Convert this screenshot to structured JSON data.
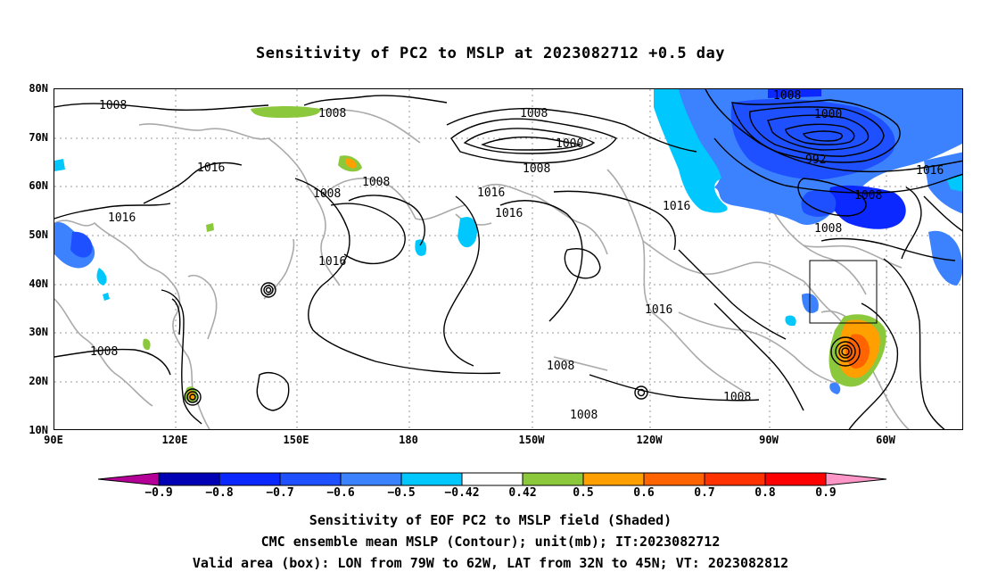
{
  "title": "Sensitivity of PC2 to MSLP at 2023082712 +0.5 day",
  "axes": {
    "lat_labels": [
      "80N",
      "70N",
      "60N",
      "50N",
      "40N",
      "30N",
      "20N",
      "10N"
    ],
    "lon_labels": [
      "90E",
      "120E",
      "150E",
      "180",
      "150W",
      "120W",
      "90W",
      "60W"
    ]
  },
  "contour_labels": [
    "1008",
    "1008",
    "1008",
    "1000",
    "1008",
    "1008",
    "1008",
    "1000",
    "992",
    "1016",
    "1016",
    "1016",
    "1016",
    "1016",
    "1016",
    "1016",
    "1008",
    "1008",
    "1016",
    "1008",
    "1008",
    "1008"
  ],
  "colorbar": {
    "ticks": [
      "−0.9",
      "−0.8",
      "−0.7",
      "−0.6",
      "−0.5",
      "−0.42",
      "0.42",
      "0.5",
      "0.6",
      "0.7",
      "0.8",
      "0.9"
    ],
    "colors": [
      "#b40096",
      "#0000b4",
      "#0a28ff",
      "#1e50ff",
      "#3c82ff",
      "#00c8ff",
      "#ffffff",
      "#8cc83c",
      "#ffa000",
      "#ff6400",
      "#ff3200",
      "#ff0000",
      "#ff96c8"
    ]
  },
  "captions": [
    "Sensitivity of EOF PC2 to MSLP field (Shaded)",
    "CMC ensemble mean MSLP (Contour); unit(mb); IT:2023082712",
    "Valid area (box): LON from 79W to 62W, LAT from 32N to 45N; VT: 2023082812"
  ]
}
